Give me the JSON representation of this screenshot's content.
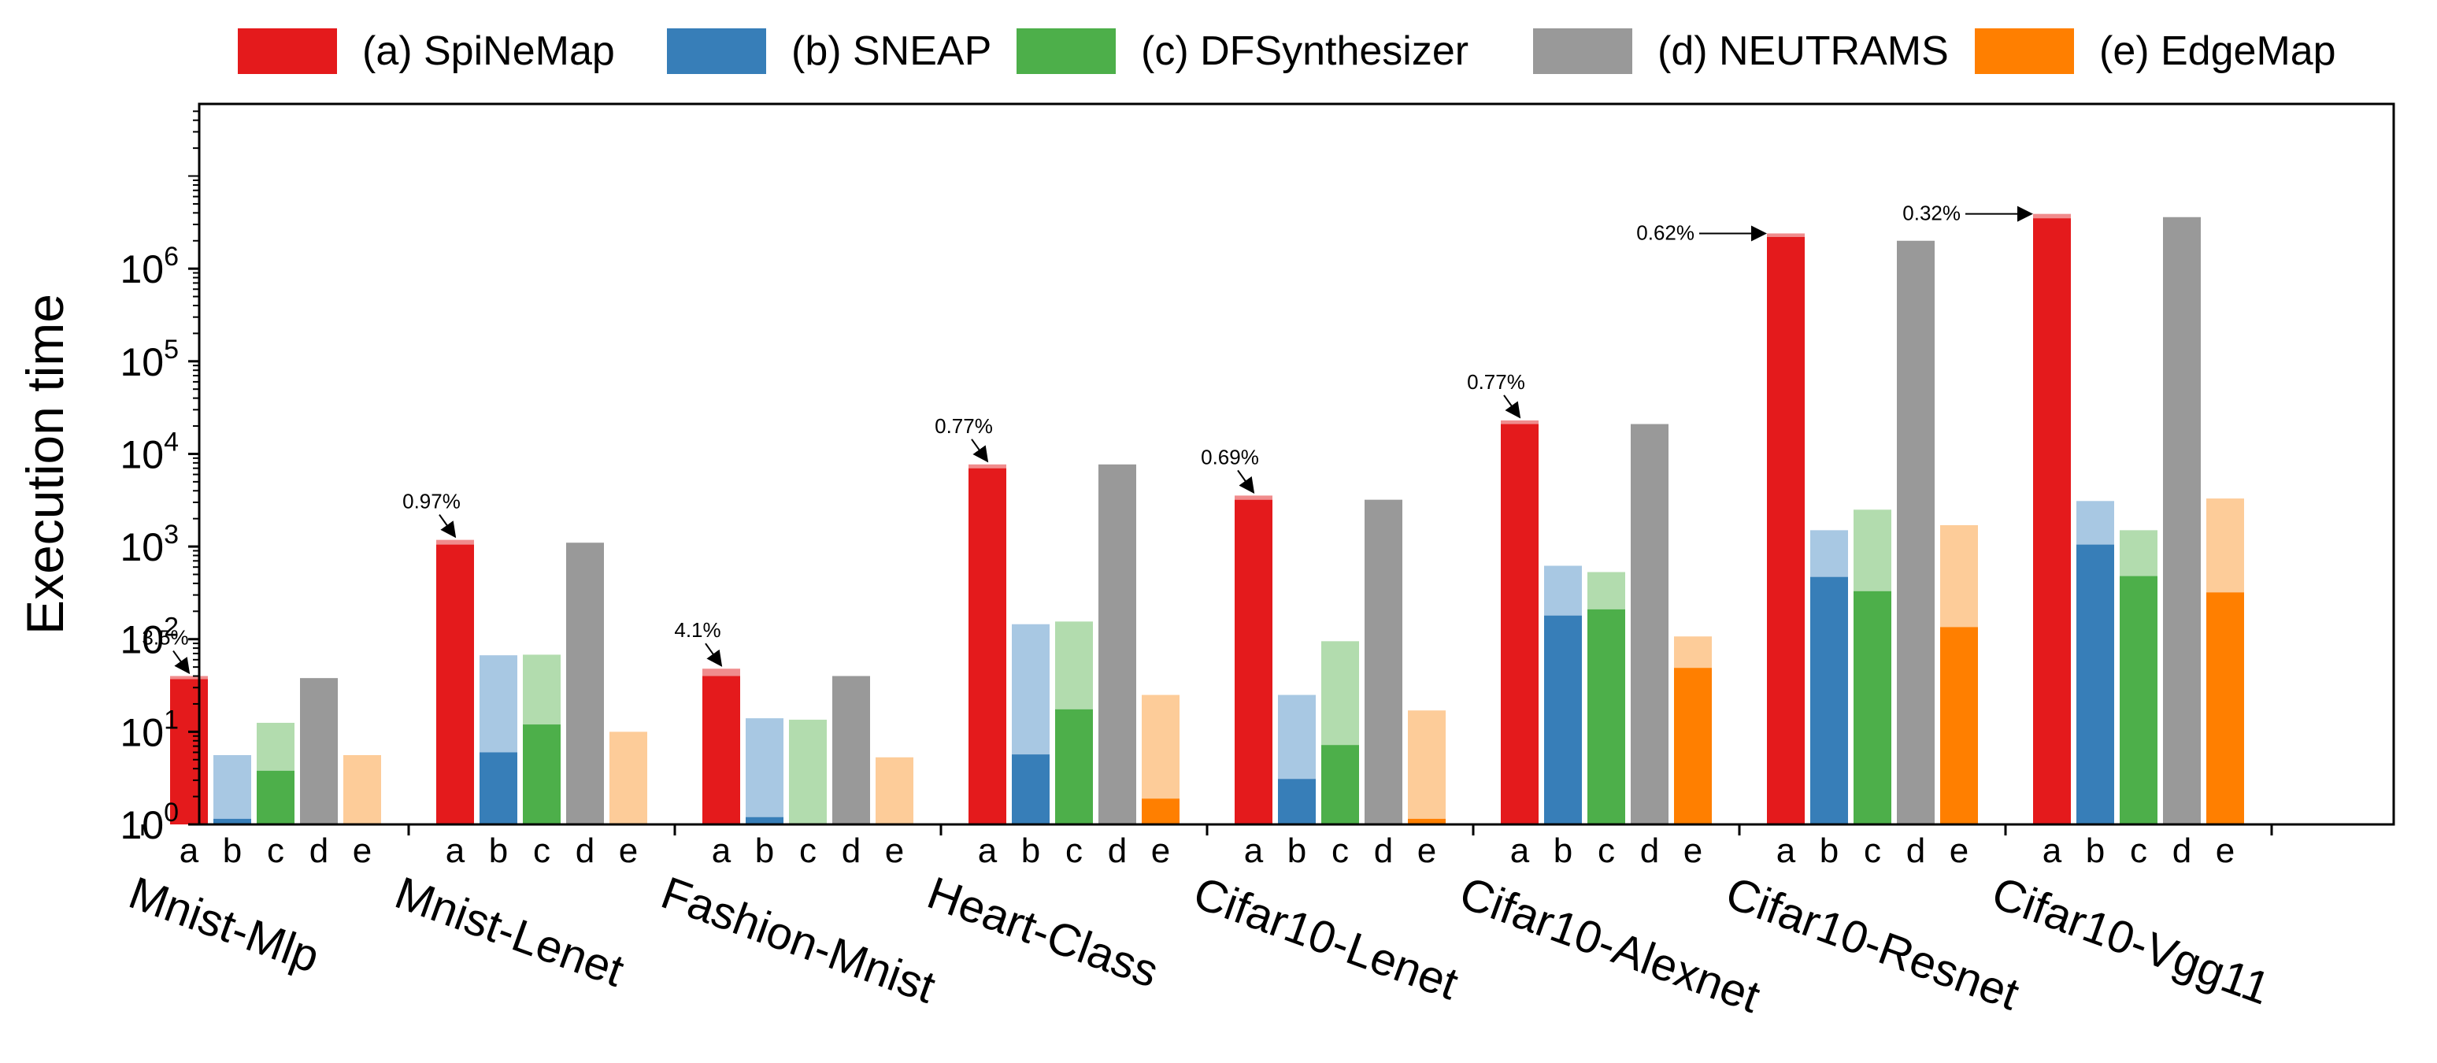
{
  "chart_data": {
    "type": "bar",
    "scale": "log",
    "ylabel": "Execution time",
    "ylim": [
      1,
      60000000
    ],
    "yticks": [
      {
        "value": 1,
        "base": "10",
        "exp": "0"
      },
      {
        "value": 10,
        "base": "10",
        "exp": "1"
      },
      {
        "value": 100,
        "base": "10",
        "exp": "2"
      },
      {
        "value": 1000,
        "base": "10",
        "exp": "3"
      },
      {
        "value": 10000,
        "base": "10",
        "exp": "4"
      },
      {
        "value": 100000,
        "base": "10",
        "exp": "5"
      },
      {
        "value": 1000000,
        "base": "10",
        "exp": "6"
      }
    ],
    "bar_letters": [
      "a",
      "b",
      "c",
      "d",
      "e"
    ],
    "series": [
      {
        "name": "(a) SpiNeMap",
        "color": "#e41a1c",
        "light_color": "#f08c8d"
      },
      {
        "name": "(b) SNEAP",
        "color": "#377eb8",
        "light_color": "#a8c8e3"
      },
      {
        "name": "(c) DFSynthesizer",
        "color": "#4daf4a",
        "light_color": "#b2dcae"
      },
      {
        "name": "(d) NEUTRAMS",
        "color": "#999999",
        "light_color": "#999999"
      },
      {
        "name": "(e) EdgeMap",
        "color": "#ff7f00",
        "light_color": "#fdcc99"
      }
    ],
    "groups": [
      {
        "name": "Mnist-Mlp",
        "annotation": "3.5%",
        "bars": [
          {
            "dark": 37,
            "total": 40
          },
          {
            "dark": 1.15,
            "total": 5.6
          },
          {
            "dark": 3.8,
            "total": 12.5
          },
          {
            "dark": 38,
            "total": 38
          },
          {
            "dark": 1,
            "total": 5.6
          }
        ]
      },
      {
        "name": "Mnist-Lenet",
        "annotation": "0.97%",
        "bars": [
          {
            "dark": 1050,
            "total": 1180
          },
          {
            "dark": 6,
            "total": 67
          },
          {
            "dark": 12,
            "total": 68
          },
          {
            "dark": 1100,
            "total": 1100
          },
          {
            "dark": 1,
            "total": 10
          }
        ]
      },
      {
        "name": "Fashion-Mnist",
        "annotation": "4.1%",
        "bars": [
          {
            "dark": 40,
            "total": 48
          },
          {
            "dark": 1.2,
            "total": 14
          },
          {
            "dark": 1,
            "total": 13.5
          },
          {
            "dark": 40,
            "total": 40
          },
          {
            "dark": 1,
            "total": 5.3
          }
        ]
      },
      {
        "name": "Heart-Class",
        "annotation": "0.77%",
        "bars": [
          {
            "dark": 7000,
            "total": 7700
          },
          {
            "dark": 5.7,
            "total": 145
          },
          {
            "dark": 17.5,
            "total": 155
          },
          {
            "dark": 7700,
            "total": 7700
          },
          {
            "dark": 1.9,
            "total": 25
          }
        ]
      },
      {
        "name": "Cifar10-Lenet",
        "annotation": "0.69%",
        "bars": [
          {
            "dark": 3200,
            "total": 3550
          },
          {
            "dark": 3.1,
            "total": 25
          },
          {
            "dark": 7.2,
            "total": 95
          },
          {
            "dark": 3200,
            "total": 3200
          },
          {
            "dark": 1.15,
            "total": 17
          }
        ]
      },
      {
        "name": "Cifar10-Alexnet",
        "annotation": "0.77%",
        "bars": [
          {
            "dark": 21000,
            "total": 23000
          },
          {
            "dark": 180,
            "total": 620
          },
          {
            "dark": 210,
            "total": 530
          },
          {
            "dark": 21000,
            "total": 21000
          },
          {
            "dark": 49,
            "total": 107
          }
        ]
      },
      {
        "name": "Cifar10-Resnet",
        "annotation": "0.62%",
        "bars": [
          {
            "dark": 2200000,
            "total": 2400000
          },
          {
            "dark": 470,
            "total": 1500
          },
          {
            "dark": 330,
            "total": 2500
          },
          {
            "dark": 2000000,
            "total": 2000000
          },
          {
            "dark": 135,
            "total": 1700
          }
        ]
      },
      {
        "name": "Cifar10-Vgg11",
        "annotation": "0.32%",
        "bars": [
          {
            "dark": 3500000,
            "total": 3900000
          },
          {
            "dark": 1050,
            "total": 3100
          },
          {
            "dark": 480,
            "total": 1500
          },
          {
            "dark": 3600000,
            "total": 3600000
          },
          {
            "dark": 320,
            "total": 3300
          }
        ]
      }
    ]
  }
}
